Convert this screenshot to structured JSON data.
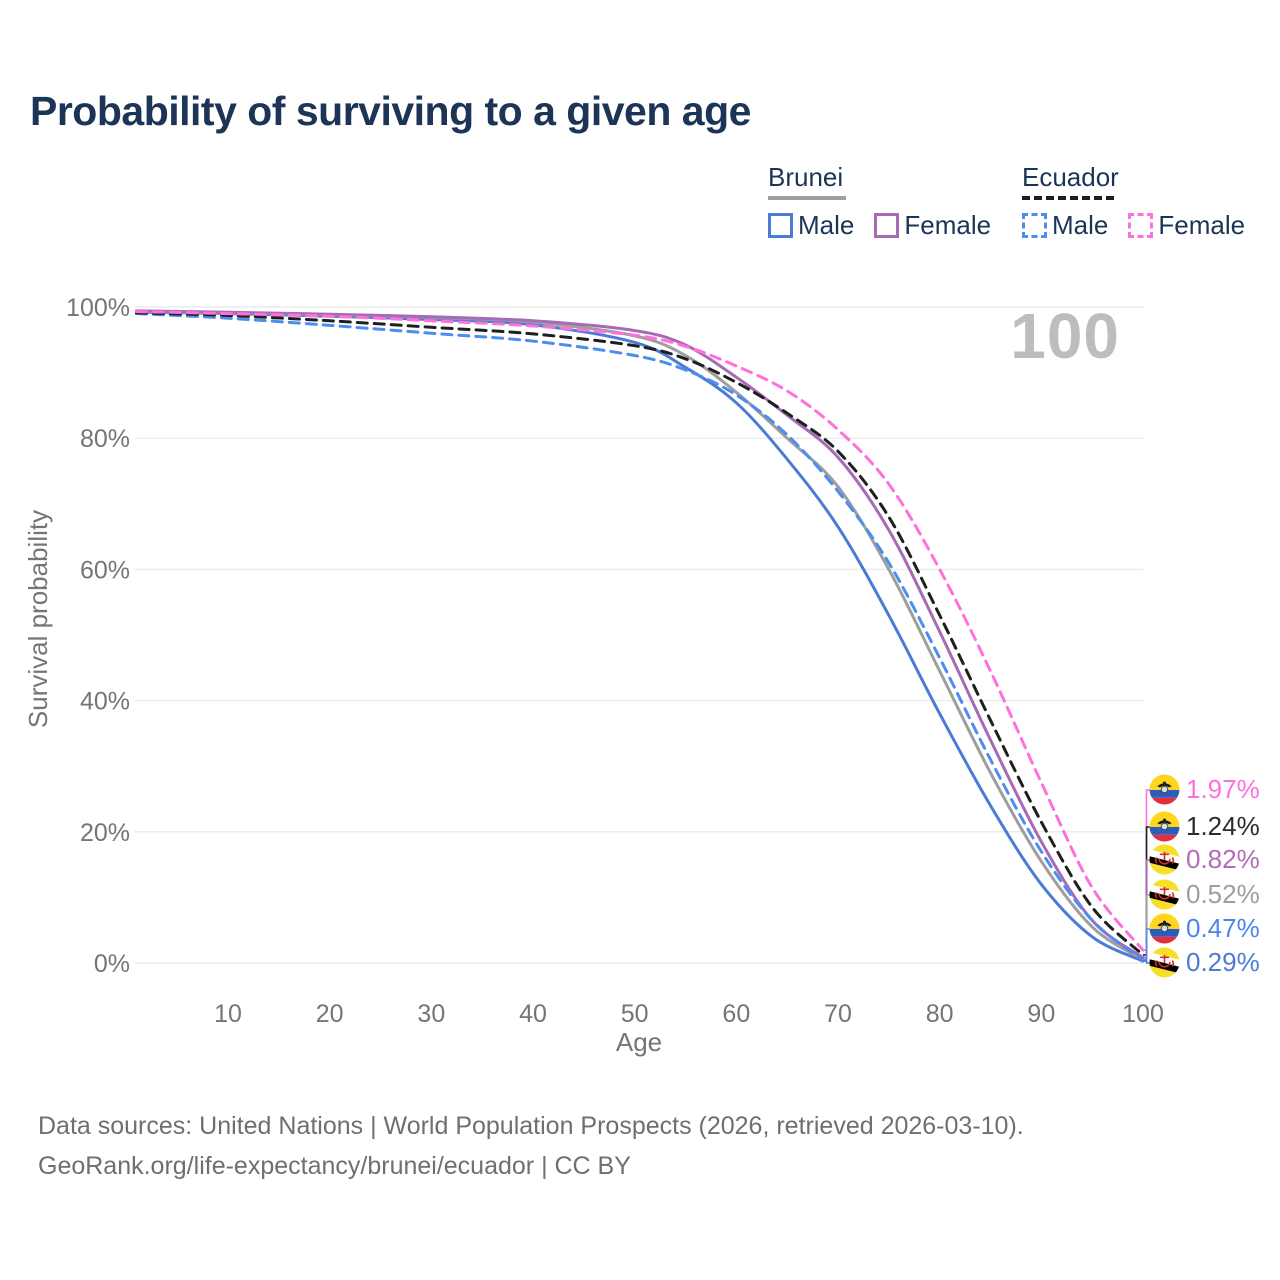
{
  "page": {
    "title": "Probability of surviving to a given age",
    "watermark": "100",
    "footer_line1": "Data sources: United Nations | World Population Prospects (2026, retrieved 2026-03-10).",
    "footer_line2": "GeoRank.org/life-expectancy/brunei/ecuador | CC BY"
  },
  "legend": {
    "brunei": {
      "name": "Brunei",
      "male": "Male",
      "female": "Female"
    },
    "ecuador": {
      "name": "Ecuador",
      "male": "Male",
      "female": "Female"
    }
  },
  "colors": {
    "brunei_male": "#4a7cd6",
    "brunei_female": "#a76ab5",
    "brunei_both": "#9e9e9e",
    "ecuador_male": "#4d8df0",
    "ecuador_female": "#ff70de",
    "ecuador_both": "#1f1f1f",
    "title": "#1c3557",
    "axis_text": "#757575",
    "grid": "#ececec",
    "watermark": "#bdbdbd"
  },
  "chart_data": {
    "type": "line",
    "title": "Probability of surviving to a given age",
    "xlabel": "Age",
    "ylabel": "Survival probability",
    "xlim": [
      1,
      100
    ],
    "ylim": [
      0,
      100
    ],
    "grid": "horizontal",
    "legend_position": "top-right",
    "x_ticks": [
      10,
      20,
      30,
      40,
      50,
      60,
      70,
      80,
      90,
      100
    ],
    "y_ticks": [
      "100%",
      "80%",
      "60%",
      "40%",
      "20%",
      "0%"
    ],
    "x": [
      1,
      10,
      20,
      30,
      40,
      50,
      55,
      60,
      65,
      70,
      75,
      80,
      85,
      90,
      95,
      100
    ],
    "series": [
      {
        "key": "brunei-male",
        "name": "Brunei Male",
        "style": "solid",
        "color": "#4a7cd6",
        "final_label": "0.29%",
        "values": [
          99.2,
          99.0,
          98.6,
          98.1,
          97.3,
          94.6,
          90.8,
          85.4,
          76.8,
          66.5,
          53.0,
          38.0,
          24.0,
          12.0,
          4.0,
          0.29
        ]
      },
      {
        "key": "brunei-both",
        "name": "Brunei Both sexes",
        "style": "solid",
        "color": "#9e9e9e",
        "final_label": "0.52%",
        "values": [
          99.3,
          99.1,
          98.8,
          98.4,
          97.7,
          95.6,
          92.6,
          87.0,
          80.0,
          72.6,
          60.0,
          44.5,
          29.0,
          15.5,
          5.5,
          0.52
        ]
      },
      {
        "key": "brunei-female",
        "name": "Brunei Female",
        "style": "solid",
        "color": "#a76ab5",
        "final_label": "0.82%",
        "values": [
          99.4,
          99.2,
          98.9,
          98.5,
          97.9,
          96.4,
          94.2,
          89.3,
          83.5,
          77.1,
          66.0,
          50.5,
          34.0,
          18.5,
          6.5,
          0.82
        ]
      },
      {
        "key": "ecuador-male",
        "name": "Ecuador Male",
        "style": "dashed",
        "color": "#4d8df0",
        "final_label": "0.47%",
        "values": [
          99.0,
          98.3,
          97.2,
          96.0,
          94.8,
          92.6,
          90.4,
          86.6,
          80.5,
          71.9,
          61.0,
          46.5,
          31.0,
          17.0,
          6.5,
          0.47
        ]
      },
      {
        "key": "ecuador-both",
        "name": "Ecuador Both sexes",
        "style": "dashed",
        "color": "#1f1f1f",
        "final_label": "1.24%",
        "values": [
          99.1,
          98.7,
          97.9,
          96.9,
          95.9,
          94.1,
          92.1,
          88.5,
          83.8,
          78.0,
          68.0,
          53.0,
          37.0,
          21.5,
          8.5,
          1.24
        ]
      },
      {
        "key": "ecuador-female",
        "name": "Ecuador Female",
        "style": "dashed",
        "color": "#ff70de",
        "final_label": "1.97%",
        "values": [
          99.3,
          99.0,
          98.6,
          97.9,
          97.1,
          95.7,
          94.0,
          91.0,
          87.2,
          81.3,
          73.0,
          60.0,
          44.5,
          27.5,
          11.5,
          1.97
        ]
      }
    ]
  },
  "end_labels": [
    {
      "value": "1.97%",
      "flag": "ecuador",
      "color": "#ff70de"
    },
    {
      "value": "1.24%",
      "flag": "ecuador",
      "color": "#2b2b2b"
    },
    {
      "value": "0.82%",
      "flag": "brunei",
      "color": "#b26cb8"
    },
    {
      "value": "0.52%",
      "flag": "brunei",
      "color": "#9e9e9e"
    },
    {
      "value": "0.47%",
      "flag": "ecuador",
      "color": "#4d86e8"
    },
    {
      "value": "0.29%",
      "flag": "brunei",
      "color": "#4a7cd6"
    }
  ]
}
